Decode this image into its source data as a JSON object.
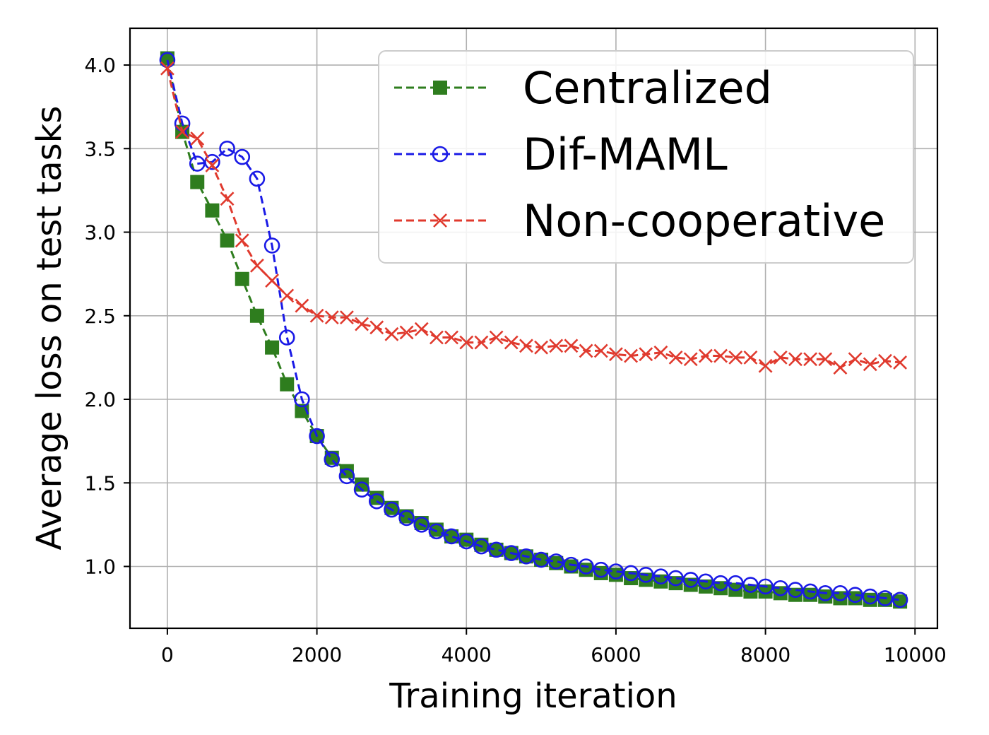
{
  "chart_data": {
    "type": "line",
    "title": "",
    "xlabel": "Training iteration",
    "ylabel": "Average loss on test tasks",
    "xlim": [
      -500,
      10300
    ],
    "ylim": [
      0.63,
      4.22
    ],
    "xticks": [
      0,
      2000,
      4000,
      6000,
      8000,
      10000
    ],
    "xtick_labels": [
      "0",
      "2000",
      "4000",
      "6000",
      "8000",
      "10000"
    ],
    "yticks": [
      1.0,
      1.5,
      2.0,
      2.5,
      3.0,
      3.5,
      4.0
    ],
    "ytick_labels": [
      "1.0",
      "1.5",
      "2.0",
      "2.5",
      "3.0",
      "3.5",
      "4.0"
    ],
    "grid": true,
    "legend_position": "top-right",
    "x": [
      0,
      200,
      400,
      600,
      800,
      1000,
      1200,
      1400,
      1600,
      1800,
      2000,
      2200,
      2400,
      2600,
      2800,
      3000,
      3200,
      3400,
      3600,
      3800,
      4000,
      4200,
      4400,
      4600,
      4800,
      5000,
      5200,
      5400,
      5600,
      5800,
      6000,
      6200,
      6400,
      6600,
      6800,
      7000,
      7200,
      7400,
      7600,
      7800,
      8000,
      8200,
      8400,
      8600,
      8800,
      9000,
      9200,
      9400,
      9600,
      9800
    ],
    "series": [
      {
        "name": "Centralized",
        "color": "#2e7d1e",
        "marker": "square",
        "values": [
          4.04,
          3.6,
          3.3,
          3.13,
          2.95,
          2.72,
          2.5,
          2.31,
          2.09,
          1.93,
          1.78,
          1.65,
          1.57,
          1.49,
          1.41,
          1.35,
          1.3,
          1.26,
          1.22,
          1.18,
          1.16,
          1.13,
          1.1,
          1.08,
          1.06,
          1.04,
          1.02,
          1.0,
          0.98,
          0.96,
          0.95,
          0.93,
          0.92,
          0.91,
          0.9,
          0.89,
          0.88,
          0.87,
          0.86,
          0.85,
          0.85,
          0.84,
          0.83,
          0.83,
          0.82,
          0.81,
          0.81,
          0.8,
          0.8,
          0.79
        ]
      },
      {
        "name": "Dif-MAML",
        "color": "#1a1ae6",
        "marker": "circle",
        "values": [
          4.03,
          3.65,
          3.41,
          3.42,
          3.5,
          3.45,
          3.32,
          2.92,
          2.37,
          2.0,
          1.78,
          1.64,
          1.54,
          1.46,
          1.39,
          1.34,
          1.29,
          1.25,
          1.21,
          1.18,
          1.15,
          1.12,
          1.1,
          1.08,
          1.06,
          1.04,
          1.03,
          1.01,
          1.0,
          0.98,
          0.97,
          0.96,
          0.95,
          0.94,
          0.93,
          0.92,
          0.91,
          0.9,
          0.9,
          0.89,
          0.88,
          0.87,
          0.86,
          0.85,
          0.84,
          0.84,
          0.83,
          0.82,
          0.81,
          0.8
        ]
      },
      {
        "name": "Non-cooperative",
        "color": "#e03a2e",
        "marker": "x",
        "values": [
          3.98,
          3.6,
          3.56,
          3.4,
          3.2,
          2.95,
          2.8,
          2.71,
          2.62,
          2.56,
          2.5,
          2.49,
          2.49,
          2.45,
          2.43,
          2.39,
          2.4,
          2.42,
          2.37,
          2.37,
          2.34,
          2.34,
          2.37,
          2.34,
          2.32,
          2.31,
          2.32,
          2.32,
          2.29,
          2.29,
          2.27,
          2.26,
          2.27,
          2.28,
          2.25,
          2.24,
          2.26,
          2.26,
          2.25,
          2.25,
          2.2,
          2.25,
          2.24,
          2.24,
          2.24,
          2.19,
          2.24,
          2.21,
          2.23,
          2.22
        ]
      }
    ]
  }
}
